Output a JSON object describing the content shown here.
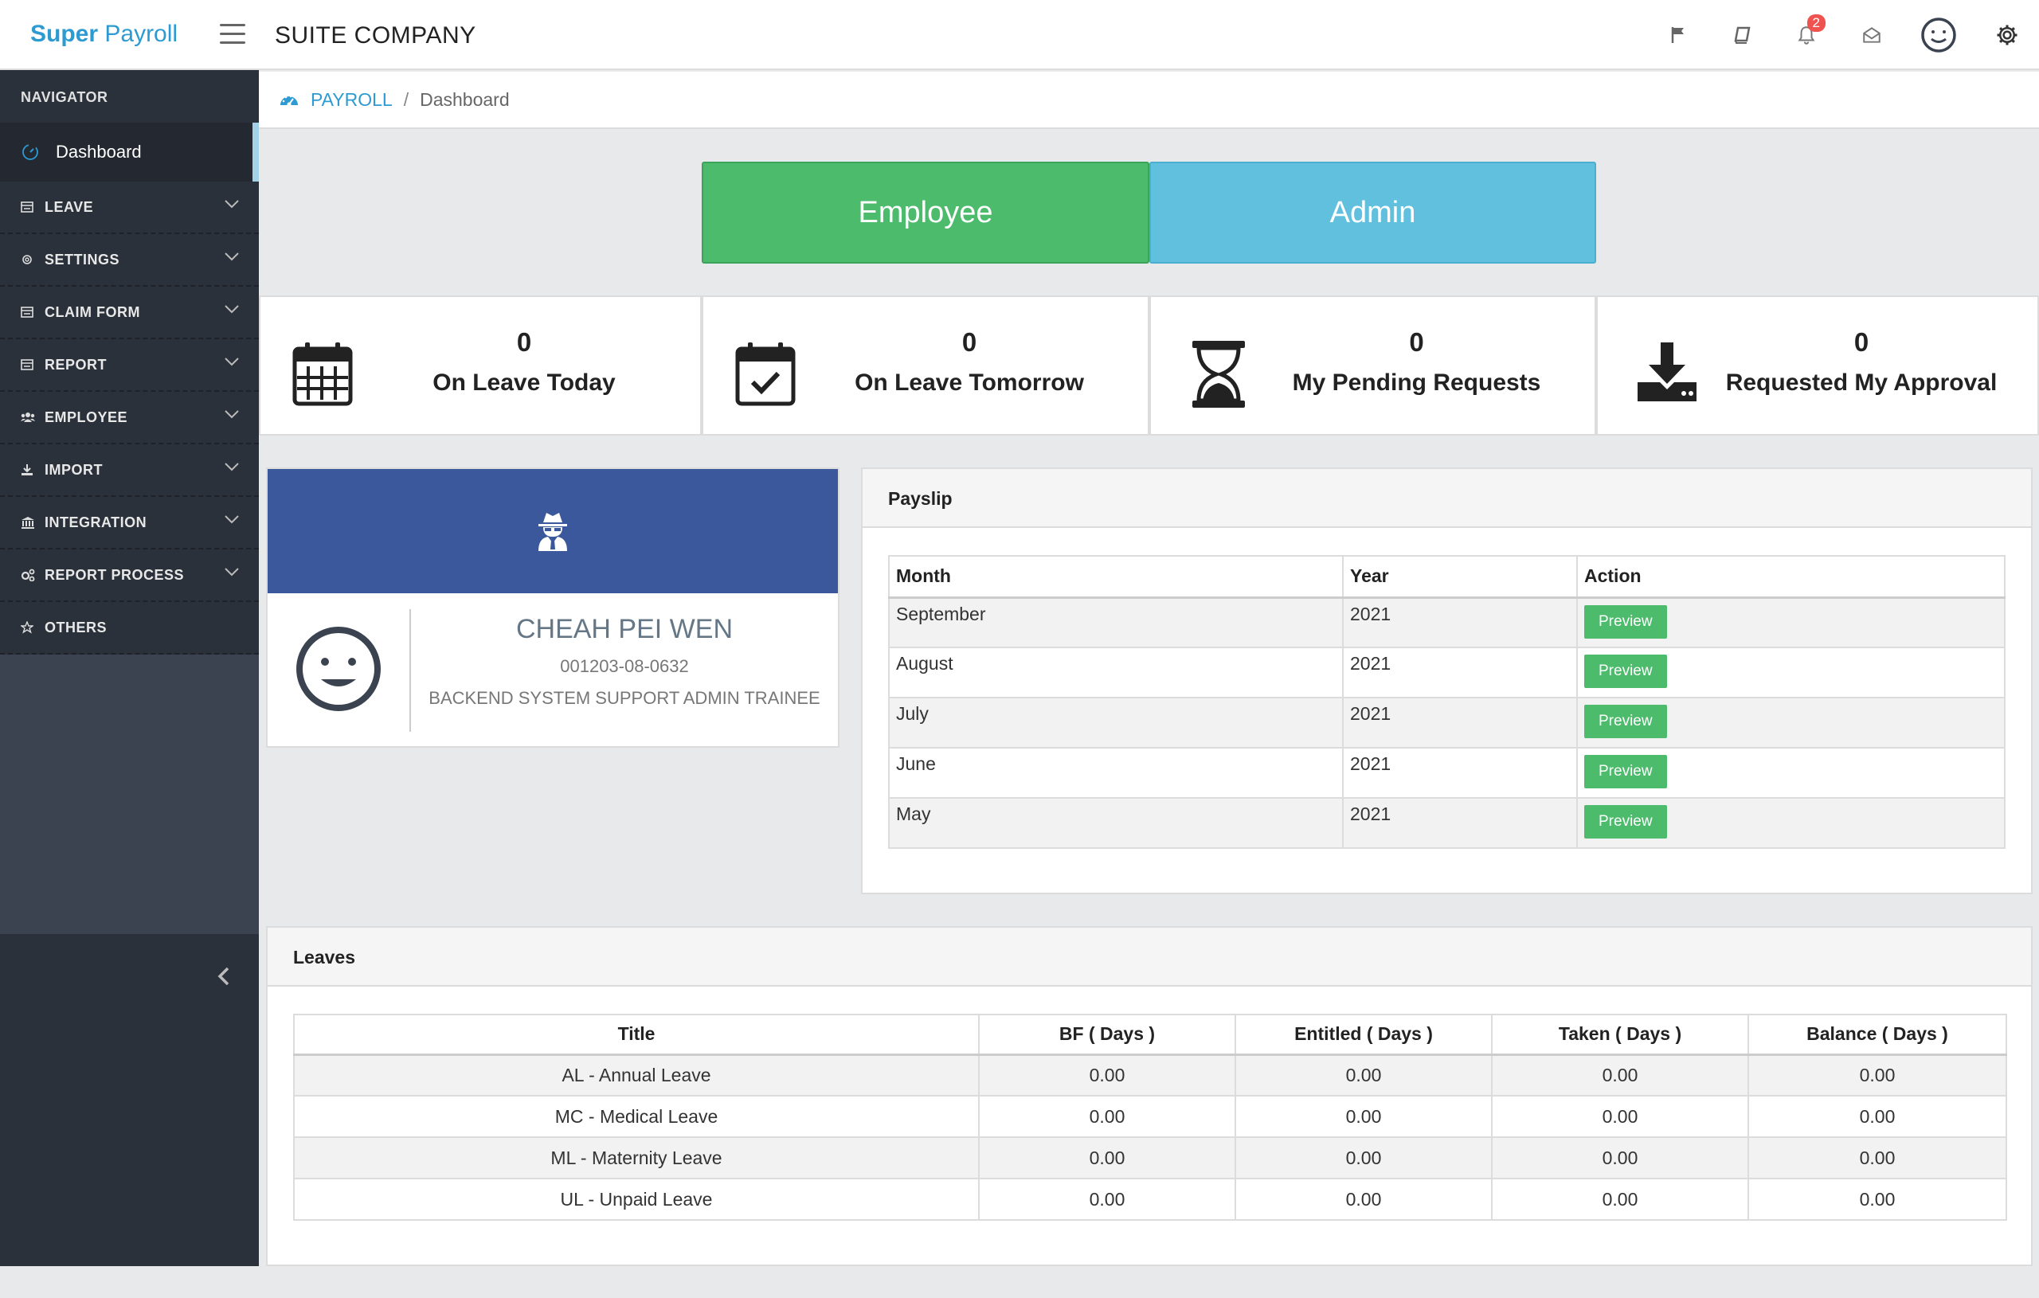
{
  "brand": {
    "bold": "Super",
    "light": "Payroll"
  },
  "company": "SUITE COMPANY",
  "header": {
    "notification_count": "2"
  },
  "sidebar": {
    "heading": "NAVIGATOR",
    "dashboard": "Dashboard",
    "items": [
      {
        "label": "LEAVE",
        "icon": "card-icon"
      },
      {
        "label": "SETTINGS",
        "icon": "gear-icon"
      },
      {
        "label": "CLAIM FORM",
        "icon": "card-icon"
      },
      {
        "label": "REPORT",
        "icon": "card-icon"
      },
      {
        "label": "EMPLOYEE",
        "icon": "users-icon"
      },
      {
        "label": "IMPORT",
        "icon": "download-icon"
      },
      {
        "label": "INTEGRATION",
        "icon": "bank-icon"
      },
      {
        "label": "REPORT PROCESS",
        "icon": "cogs-icon"
      },
      {
        "label": "OTHERS",
        "icon": "star-icon"
      }
    ]
  },
  "breadcrumb": {
    "root": "PAYROLL",
    "sep": "/",
    "current": "Dashboard"
  },
  "role_buttons": {
    "employee": "Employee",
    "admin": "Admin"
  },
  "stats": [
    {
      "value": "0",
      "label": "On Leave Today"
    },
    {
      "value": "0",
      "label": "On Leave Tomorrow"
    },
    {
      "value": "0",
      "label": "My Pending Requests"
    },
    {
      "value": "0",
      "label": "Requested My Approval"
    }
  ],
  "profile": {
    "name": "CHEAH PEI WEN",
    "id": "001203-08-0632",
    "role": "BACKEND SYSTEM SUPPORT ADMIN TRAINEE"
  },
  "payslip": {
    "title": "Payslip",
    "headers": [
      "Month",
      "Year",
      "Action"
    ],
    "rows": [
      {
        "month": "September",
        "year": "2021",
        "action": "Preview"
      },
      {
        "month": "August",
        "year": "2021",
        "action": "Preview"
      },
      {
        "month": "July",
        "year": "2021",
        "action": "Preview"
      },
      {
        "month": "June",
        "year": "2021",
        "action": "Preview"
      },
      {
        "month": "May",
        "year": "2021",
        "action": "Preview"
      }
    ]
  },
  "leaves": {
    "title": "Leaves",
    "headers": [
      "Title",
      "BF ( Days )",
      "Entitled ( Days )",
      "Taken ( Days )",
      "Balance ( Days )"
    ],
    "rows": [
      [
        "AL - Annual Leave",
        "0.00",
        "0.00",
        "0.00",
        "0.00"
      ],
      [
        "MC - Medical Leave",
        "0.00",
        "0.00",
        "0.00",
        "0.00"
      ],
      [
        "ML - Maternity Leave",
        "0.00",
        "0.00",
        "0.00",
        "0.00"
      ],
      [
        "UL - Unpaid Leave",
        "0.00",
        "0.00",
        "0.00",
        "0.00"
      ]
    ]
  },
  "colors": {
    "brand": "#2d9bd1",
    "employee": "#4cbb6c",
    "admin": "#62c0df",
    "profile_banner": "#3a589b",
    "sidebar": "#2b313a"
  }
}
